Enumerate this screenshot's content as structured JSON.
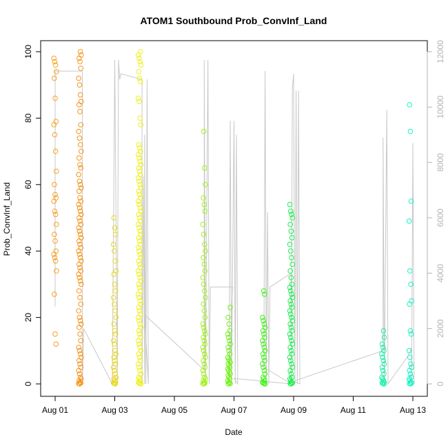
{
  "chart_data": {
    "type": "scatter",
    "title": "ATOM1 Southbound Prob_ConvInf_Land",
    "xlabel": "Date",
    "ylabel": "Prob_ConvInf_Land",
    "xlim": [
      "2013-08-01",
      "2013-08-13"
    ],
    "ylim": [
      0,
      100
    ],
    "y2lim": [
      0,
      12000
    ],
    "x_ticks": [
      {
        "date": "2013-08-01",
        "label": "Aug 01"
      },
      {
        "date": "2013-08-03",
        "label": "Aug 03"
      },
      {
        "date": "2013-08-05",
        "label": "Aug 05"
      },
      {
        "date": "2013-08-07",
        "label": "Aug 07"
      },
      {
        "date": "2013-08-09",
        "label": "Aug 09"
      },
      {
        "date": "2013-08-11",
        "label": "Aug 11"
      },
      {
        "date": "2013-08-13",
        "label": "Aug 13"
      }
    ],
    "y_ticks": [
      0,
      20,
      40,
      60,
      80,
      100
    ],
    "y2_ticks": [
      0,
      2000,
      4000,
      6000,
      8000,
      10000,
      12000
    ],
    "marker": "open-circle",
    "color_scale": "rainbow by date (orange → yellow → green → teal)",
    "point_groups": [
      {
        "date": "2013-08-01",
        "color": "#f7a020",
        "values": [
          98,
          97,
          96,
          94,
          92,
          86,
          79,
          78,
          75,
          70,
          64,
          60,
          57,
          56,
          55,
          52,
          51,
          48,
          45,
          43,
          40,
          39,
          38,
          37,
          34,
          27,
          15,
          12
        ]
      },
      {
        "date": "2013-08-01 20:00",
        "color": "#f59318",
        "values": [
          100,
          99,
          98,
          97,
          95,
          92,
          90,
          87,
          85,
          84,
          82,
          78,
          76,
          74,
          72,
          70,
          68,
          66,
          65,
          63,
          61,
          60,
          59,
          58,
          56,
          55,
          54,
          53,
          52,
          51,
          50,
          49,
          48,
          47,
          46,
          45,
          44,
          43,
          42,
          41,
          40,
          39,
          38,
          37,
          36,
          35,
          34,
          33,
          32,
          31,
          30,
          28,
          26,
          24,
          22,
          20,
          19,
          18,
          17,
          15,
          13,
          11,
          10,
          9,
          8,
          7,
          6,
          5,
          4,
          3,
          2,
          1.5,
          1,
          0.5,
          0.3,
          0.1,
          0
        ]
      },
      {
        "date": "2013-08-03",
        "color": "#e9d81a",
        "values": [
          50,
          47,
          45,
          42,
          40,
          37,
          34,
          33,
          30,
          28,
          26,
          24,
          22,
          20,
          18,
          16,
          15,
          13,
          12,
          10,
          9,
          8,
          7,
          6,
          5,
          4,
          3,
          2,
          1.5,
          1,
          0.5,
          0.3,
          0.1,
          0
        ]
      },
      {
        "date": "2013-08-03 20:00",
        "color": "#eef01a",
        "values": [
          100,
          99,
          98,
          97,
          96,
          94,
          92,
          91,
          86,
          85,
          80,
          78,
          72,
          71,
          70,
          69,
          68,
          67,
          66,
          65,
          64,
          63,
          62,
          61,
          60,
          59,
          58,
          57,
          56,
          55,
          54,
          53,
          52,
          51,
          50,
          49,
          48,
          47,
          46,
          45,
          44,
          43,
          42,
          41,
          40,
          39,
          38,
          37,
          36,
          35,
          34,
          33,
          32,
          31,
          30,
          29,
          28,
          27,
          26,
          25,
          24,
          23,
          22,
          21,
          20,
          19,
          18,
          17,
          16,
          15,
          14,
          13,
          12,
          11,
          10,
          9,
          8,
          7,
          6,
          5,
          4,
          3,
          2,
          1.5,
          1,
          0.5,
          0.3,
          0.1,
          0
        ]
      },
      {
        "date": "2013-08-06",
        "color": "#9ff214",
        "values": [
          76,
          65,
          60,
          56,
          54,
          52,
          48,
          45,
          42,
          40,
          38,
          36,
          34,
          32,
          30,
          28,
          26,
          24,
          22,
          20,
          18,
          17,
          16,
          15,
          14,
          13,
          12,
          11,
          10,
          9,
          8,
          7,
          6,
          5,
          4,
          3,
          2,
          1.5,
          1,
          0.5,
          0.3,
          0.1,
          0
        ]
      },
      {
        "date": "2013-08-06 20:00",
        "color": "#6ff214",
        "values": [
          23,
          20,
          18,
          16,
          15,
          14,
          13,
          12,
          11,
          10,
          9,
          8,
          7.5,
          7,
          6.5,
          6,
          5.5,
          5,
          4.5,
          4,
          3.5,
          3,
          2.5,
          2,
          1.5,
          1,
          0.5,
          0.3,
          0.1,
          0
        ]
      },
      {
        "date": "2013-08-08",
        "color": "#3ef214",
        "values": [
          28,
          27,
          20,
          19,
          18,
          17,
          16,
          15,
          14,
          13,
          12,
          11,
          10,
          9,
          8,
          7,
          6,
          5,
          4,
          3,
          2,
          1.5,
          1,
          0.5,
          0.3,
          0.1,
          0
        ]
      },
      {
        "date": "2013-08-08 22:00",
        "color": "#14f24a",
        "values": [
          54,
          52,
          51,
          50,
          48,
          46,
          44,
          42,
          40,
          38,
          36,
          34,
          32,
          30,
          29,
          28,
          27,
          26,
          25,
          24,
          23,
          22,
          21,
          20,
          19,
          18,
          17,
          16,
          15,
          14,
          13,
          12,
          11,
          10,
          9,
          8,
          7,
          6,
          5,
          4,
          3,
          2,
          1.5,
          1,
          0.5,
          0.3,
          0.1,
          0
        ]
      },
      {
        "date": "2013-08-12",
        "color": "#14f2a6",
        "values": [
          16,
          14,
          12,
          11,
          10,
          9,
          8,
          7,
          6,
          5,
          4,
          3,
          2,
          1.5,
          1,
          0.5,
          0.3,
          0.1,
          0
        ]
      },
      {
        "date": "2013-08-12 22:00",
        "color": "#14f2c4",
        "values": [
          84,
          76,
          55,
          49,
          34,
          30,
          25,
          24,
          16,
          15,
          10,
          8,
          6,
          5,
          4,
          3,
          2,
          1.5,
          1,
          0.5,
          0.3,
          0.1,
          0
        ]
      }
    ],
    "secondary_series": {
      "name": "",
      "color": "#c8c8c8",
      "axis": "right",
      "points": [
        [
          "2013-08-01",
          2800
        ],
        [
          "2013-08-01",
          11300
        ],
        [
          "2013-08-01 22:00",
          11300
        ],
        [
          "2013-08-01 22:00",
          0
        ],
        [
          "2013-08-01 23:00",
          2000
        ],
        [
          "2013-08-02 22:00",
          0
        ],
        [
          "2013-08-03",
          11700
        ],
        [
          "2013-08-03 02:00",
          0
        ],
        [
          "2013-08-03 03:00",
          11700
        ],
        [
          "2013-08-03 04:00",
          11000
        ],
        [
          "2013-08-03 05:00",
          11200
        ],
        [
          "2013-08-03 22:00",
          11000
        ],
        [
          "2013-08-03 22:00",
          0
        ],
        [
          "2013-08-03 23:00",
          7500
        ],
        [
          "2013-08-04",
          0
        ],
        [
          "2013-08-04",
          9000
        ],
        [
          "2013-08-04 01:00",
          0
        ],
        [
          "2013-08-04 02:00",
          11000
        ],
        [
          "2013-08-04 03:00",
          0
        ],
        [
          "2013-08-04",
          2500
        ],
        [
          "2013-08-06",
          500
        ],
        [
          "2013-08-06",
          11700
        ],
        [
          "2013-08-06 01:00",
          0
        ],
        [
          "2013-08-06 03:00",
          11700
        ],
        [
          "2013-08-06 04:00",
          0
        ],
        [
          "2013-08-06 05:00",
          3500
        ],
        [
          "2013-08-06 23:00",
          3500
        ],
        [
          "2013-08-06 20:00",
          0
        ],
        [
          "2013-08-06 21:00",
          9500
        ],
        [
          "2013-08-06 22:00",
          0
        ],
        [
          "2013-08-07",
          9500
        ],
        [
          "2013-08-07 01:00",
          0
        ],
        [
          "2013-08-07 02:00",
          9000
        ],
        [
          "2013-08-07 03:00",
          0
        ],
        [
          "2013-08-07",
          200
        ],
        [
          "2013-08-08 22:00",
          0
        ],
        [
          "2013-08-08",
          600
        ],
        [
          "2013-08-08 01:00",
          11300
        ],
        [
          "2013-08-08 02:00",
          0
        ],
        [
          "2013-08-08 03:00",
          6200
        ],
        [
          "2013-08-08 04:00",
          0
        ],
        [
          "2013-08-08 05:00",
          3500
        ],
        [
          "2013-08-08 22:00",
          4000
        ],
        [
          "2013-08-08 22:00",
          0
        ],
        [
          "2013-08-08 23:00",
          10700
        ],
        [
          "2013-08-09",
          11200
        ],
        [
          "2013-08-09 01:00",
          0
        ],
        [
          "2013-08-09 02:00",
          10600
        ],
        [
          "2013-08-09 03:00",
          0
        ],
        [
          "2013-08-09 04:00",
          10600
        ],
        [
          "2013-08-09 05:00",
          0
        ],
        [
          "2013-08-09",
          100
        ],
        [
          "2013-08-12",
          1200
        ],
        [
          "2013-08-12",
          8900
        ],
        [
          "2013-08-12 01:00",
          0
        ],
        [
          "2013-08-12 03:00",
          9900
        ],
        [
          "2013-08-12 04:00",
          0
        ],
        [
          "2013-08-12 20:00",
          1000
        ],
        [
          "2013-08-12 23:00",
          1300
        ],
        [
          "2013-08-12 23:00",
          0
        ],
        [
          "2013-08-13",
          8700
        ],
        [
          "2013-08-13 01:00",
          0
        ]
      ]
    },
    "grid": false,
    "legend": "none"
  }
}
